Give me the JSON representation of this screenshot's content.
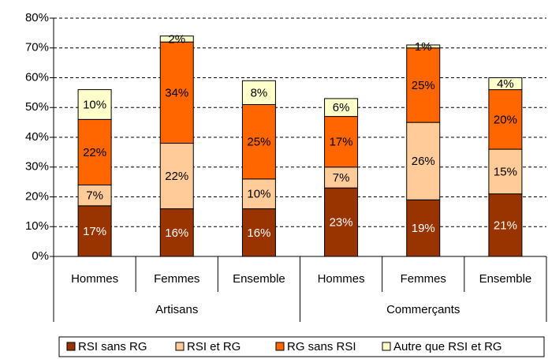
{
  "chart_data": {
    "type": "stacked_bar",
    "categories": [
      "Hommes",
      "Femmes",
      "Ensemble",
      "Hommes",
      "Femmes",
      "Ensemble"
    ],
    "groups": [
      {
        "name": "Artisans",
        "span": 3
      },
      {
        "name": "Commerçants",
        "span": 3
      }
    ],
    "series": [
      {
        "name": "RSI sans RG",
        "color": "#993300",
        "values": [
          17,
          16,
          16,
          23,
          19,
          21
        ],
        "value_labels": [
          "17%",
          "16%",
          "16%",
          "23%",
          "19%",
          "21%"
        ]
      },
      {
        "name": "RSI et RG",
        "color": "#FFCC99",
        "values": [
          7,
          22,
          10,
          7,
          26,
          15
        ],
        "value_labels": [
          "7%",
          "22%",
          "10%",
          "7%",
          "26%",
          "15%"
        ]
      },
      {
        "name": "RG sans RSI",
        "color": "#FF6600",
        "values": [
          22,
          34,
          25,
          17,
          25,
          20
        ],
        "value_labels": [
          "22%",
          "34%",
          "25%",
          "17%",
          "25%",
          "20%"
        ]
      },
      {
        "name": "Autre que RSI et RG",
        "color": "#FFFFCC",
        "values": [
          10,
          2,
          8,
          6,
          1,
          4
        ],
        "value_labels": [
          "10%",
          "2%",
          "8%",
          "6%",
          "1%",
          "4%"
        ]
      }
    ],
    "ylim": [
      0,
      80
    ],
    "yticks": [
      {
        "value": 0,
        "label": "0%"
      },
      {
        "value": 10,
        "label": "10%"
      },
      {
        "value": 20,
        "label": "20%"
      },
      {
        "value": 30,
        "label": "30%"
      },
      {
        "value": 40,
        "label": "40%"
      },
      {
        "value": 50,
        "label": "50%"
      },
      {
        "value": 60,
        "label": "60%"
      },
      {
        "value": 70,
        "label": "70%"
      },
      {
        "value": 80,
        "label": "80%"
      }
    ],
    "grid": true,
    "legend": "bottom"
  }
}
